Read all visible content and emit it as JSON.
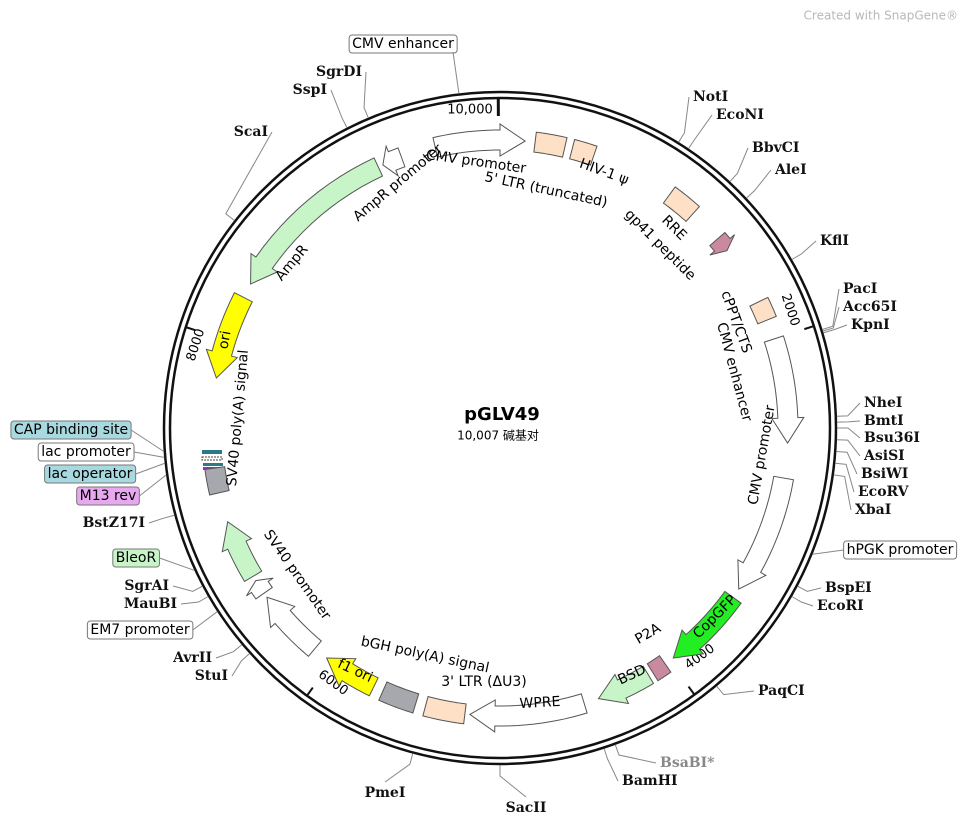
{
  "watermark": "Created with SnapGene®",
  "title": "pGLV49",
  "subtitle": "10,007 碱基对",
  "ruler": [
    "10,000",
    "2000",
    "4000",
    "6000",
    "8000"
  ],
  "features": [
    "CMV promoter",
    "5' LTR (truncated)",
    "HIV-1 ψ",
    "RRE",
    "gp41 peptide",
    "cPPT/CTS",
    "CMV enhancer",
    "CMV promoter",
    "CopGFP",
    "P2A",
    "BSD",
    "WPRE",
    "3' LTR (ΔU3)",
    "bGH poly(A) signal",
    "f1 ori",
    "SV40 promoter",
    "SV40 poly(A) signal",
    "ori",
    "AmpR",
    "AmpR promoter"
  ],
  "sites": [
    "NotI",
    "EcoNI",
    "BbvCI",
    "AleI",
    "KflI",
    "PacI",
    "Acc65I",
    "KpnI",
    "NheI",
    "BmtI",
    "Bsu36I",
    "AsiSI",
    "BsiWI",
    "EcoRV",
    "XbaI",
    "BspEI",
    "EcoRI",
    "PaqCI",
    "BsaBI*",
    "BamHI",
    "SacII",
    "PmeI",
    "StuI",
    "AvrII",
    "MauBI",
    "SgrAI",
    "BstZ17I",
    "ScaI",
    "SspI",
    "SgrDI"
  ],
  "boxed_labels": [
    "CMV enhancer",
    "hPGK promoter",
    "CAP binding site",
    "lac promoter",
    "lac operator",
    "M13 rev",
    "BleoR",
    "EM7 promoter"
  ]
}
